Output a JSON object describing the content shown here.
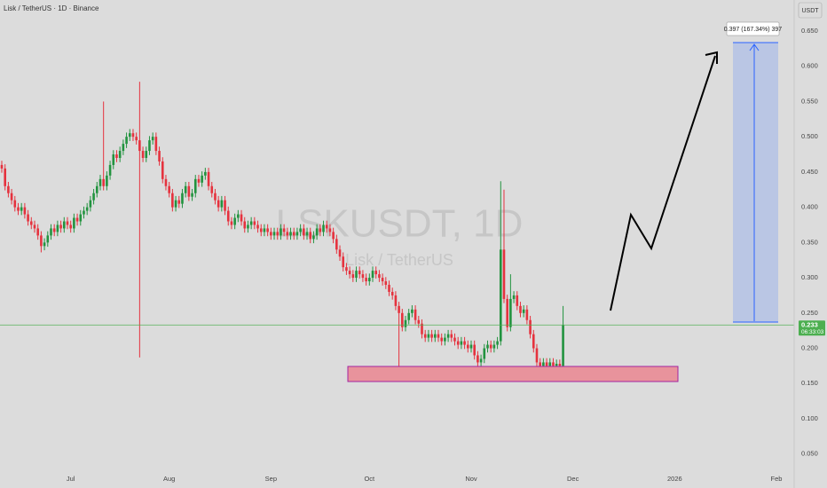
{
  "chart_data": {
    "type": "candlestick",
    "title": "Lisk / TetherUS · 1D · Binance",
    "watermark": "LSKUSDT, 1D",
    "watermark_subtitle": "Lisk / TetherUS",
    "currency": "USDT",
    "countdown": "06:33:03",
    "annotation": "0.397 (167.34%) 397",
    "up_color": "#22933f",
    "down_color": "#e5323e",
    "price_line_color": "#4caf50",
    "grid": false,
    "ylim": [
      0.027,
      0.694
    ],
    "yticks": [
      {
        "value": 0.05,
        "label": "0.050"
      },
      {
        "value": 0.1,
        "label": "0.100"
      },
      {
        "value": 0.15,
        "label": "0.150"
      },
      {
        "value": 0.2,
        "label": "0.200"
      },
      {
        "value": 0.25,
        "label": "0.250"
      },
      {
        "value": 0.3,
        "label": "0.300"
      },
      {
        "value": 0.35,
        "label": "0.350"
      },
      {
        "value": 0.4,
        "label": "0.400"
      },
      {
        "value": 0.45,
        "label": "0.450"
      },
      {
        "value": 0.5,
        "label": "0.500"
      },
      {
        "value": 0.55,
        "label": "0.550"
      },
      {
        "value": 0.6,
        "label": "0.600"
      },
      {
        "value": 0.65,
        "label": "0.650"
      }
    ],
    "xlim": [
      -0.54,
      241.4
    ],
    "xticks": [
      {
        "value": 21,
        "label": "Jul"
      },
      {
        "value": 51,
        "label": "Aug"
      },
      {
        "value": 82,
        "label": "Sep"
      },
      {
        "value": 112,
        "label": "Oct"
      },
      {
        "value": 143,
        "label": "Nov"
      },
      {
        "value": 174,
        "label": "Dec"
      },
      {
        "value": 205,
        "label": "2026"
      },
      {
        "value": 236,
        "label": "Feb"
      }
    ],
    "ohlc": [
      [
        0.46,
        0.466,
        0.449,
        0.455
      ],
      [
        0.455,
        0.461,
        0.424,
        0.43
      ],
      [
        0.43,
        0.436,
        0.414,
        0.42
      ],
      [
        0.42,
        0.426,
        0.404,
        0.41
      ],
      [
        0.41,
        0.416,
        0.394,
        0.4
      ],
      [
        0.4,
        0.406,
        0.389,
        0.395
      ],
      [
        0.395,
        0.406,
        0.389,
        0.4
      ],
      [
        0.4,
        0.406,
        0.384,
        0.39
      ],
      [
        0.39,
        0.396,
        0.374,
        0.38
      ],
      [
        0.38,
        0.386,
        0.369,
        0.375
      ],
      [
        0.375,
        0.381,
        0.364,
        0.37
      ],
      [
        0.37,
        0.376,
        0.354,
        0.36
      ],
      [
        0.36,
        0.366,
        0.336,
        0.345
      ],
      [
        0.345,
        0.356,
        0.339,
        0.35
      ],
      [
        0.35,
        0.366,
        0.344,
        0.36
      ],
      [
        0.36,
        0.376,
        0.354,
        0.37
      ],
      [
        0.37,
        0.376,
        0.359,
        0.365
      ],
      [
        0.365,
        0.381,
        0.359,
        0.375
      ],
      [
        0.375,
        0.381,
        0.364,
        0.37
      ],
      [
        0.37,
        0.386,
        0.364,
        0.38
      ],
      [
        0.38,
        0.386,
        0.369,
        0.375
      ],
      [
        0.375,
        0.381,
        0.364,
        0.37
      ],
      [
        0.37,
        0.391,
        0.364,
        0.385
      ],
      [
        0.385,
        0.391,
        0.374,
        0.38
      ],
      [
        0.38,
        0.396,
        0.374,
        0.39
      ],
      [
        0.39,
        0.401,
        0.384,
        0.395
      ],
      [
        0.395,
        0.406,
        0.389,
        0.4
      ],
      [
        0.4,
        0.416,
        0.394,
        0.41
      ],
      [
        0.41,
        0.426,
        0.404,
        0.42
      ],
      [
        0.42,
        0.436,
        0.414,
        0.43
      ],
      [
        0.43,
        0.446,
        0.424,
        0.44
      ],
      [
        0.44,
        0.55,
        0.424,
        0.43
      ],
      [
        0.43,
        0.451,
        0.424,
        0.445
      ],
      [
        0.445,
        0.466,
        0.439,
        0.46
      ],
      [
        0.46,
        0.481,
        0.454,
        0.475
      ],
      [
        0.475,
        0.481,
        0.464,
        0.47
      ],
      [
        0.47,
        0.486,
        0.464,
        0.48
      ],
      [
        0.48,
        0.496,
        0.474,
        0.49
      ],
      [
        0.49,
        0.506,
        0.484,
        0.5
      ],
      [
        0.5,
        0.511,
        0.494,
        0.505
      ],
      [
        0.505,
        0.511,
        0.494,
        0.5
      ],
      [
        0.5,
        0.506,
        0.489,
        0.495
      ],
      [
        0.495,
        0.578,
        0.187,
        0.48
      ],
      [
        0.48,
        0.486,
        0.464,
        0.47
      ],
      [
        0.47,
        0.486,
        0.464,
        0.48
      ],
      [
        0.48,
        0.501,
        0.474,
        0.495
      ],
      [
        0.495,
        0.506,
        0.489,
        0.5
      ],
      [
        0.5,
        0.506,
        0.474,
        0.48
      ],
      [
        0.48,
        0.486,
        0.459,
        0.465
      ],
      [
        0.465,
        0.471,
        0.434,
        0.44
      ],
      [
        0.44,
        0.446,
        0.424,
        0.43
      ],
      [
        0.43,
        0.436,
        0.414,
        0.42
      ],
      [
        0.42,
        0.426,
        0.394,
        0.4
      ],
      [
        0.4,
        0.416,
        0.394,
        0.41
      ],
      [
        0.41,
        0.416,
        0.399,
        0.405
      ],
      [
        0.405,
        0.426,
        0.399,
        0.42
      ],
      [
        0.42,
        0.436,
        0.414,
        0.43
      ],
      [
        0.43,
        0.436,
        0.409,
        0.415
      ],
      [
        0.415,
        0.426,
        0.409,
        0.42
      ],
      [
        0.42,
        0.446,
        0.414,
        0.44
      ],
      [
        0.44,
        0.446,
        0.429,
        0.435
      ],
      [
        0.435,
        0.451,
        0.429,
        0.445
      ],
      [
        0.445,
        0.456,
        0.439,
        0.45
      ],
      [
        0.45,
        0.456,
        0.424,
        0.43
      ],
      [
        0.43,
        0.436,
        0.414,
        0.42
      ],
      [
        0.42,
        0.426,
        0.404,
        0.41
      ],
      [
        0.41,
        0.416,
        0.394,
        0.4
      ],
      [
        0.4,
        0.416,
        0.394,
        0.41
      ],
      [
        0.41,
        0.416,
        0.389,
        0.395
      ],
      [
        0.395,
        0.401,
        0.374,
        0.38
      ],
      [
        0.38,
        0.386,
        0.369,
        0.375
      ],
      [
        0.375,
        0.391,
        0.369,
        0.385
      ],
      [
        0.385,
        0.396,
        0.379,
        0.39
      ],
      [
        0.39,
        0.396,
        0.374,
        0.38
      ],
      [
        0.38,
        0.386,
        0.364,
        0.37
      ],
      [
        0.37,
        0.381,
        0.364,
        0.375
      ],
      [
        0.375,
        0.386,
        0.369,
        0.38
      ],
      [
        0.38,
        0.386,
        0.369,
        0.375
      ],
      [
        0.375,
        0.381,
        0.364,
        0.37
      ],
      [
        0.37,
        0.376,
        0.359,
        0.365
      ],
      [
        0.365,
        0.376,
        0.359,
        0.37
      ],
      [
        0.37,
        0.376,
        0.359,
        0.365
      ],
      [
        0.365,
        0.371,
        0.354,
        0.36
      ],
      [
        0.36,
        0.371,
        0.354,
        0.365
      ],
      [
        0.365,
        0.371,
        0.354,
        0.36
      ],
      [
        0.36,
        0.376,
        0.354,
        0.37
      ],
      [
        0.37,
        0.376,
        0.359,
        0.365
      ],
      [
        0.365,
        0.371,
        0.354,
        0.36
      ],
      [
        0.36,
        0.371,
        0.354,
        0.365
      ],
      [
        0.365,
        0.371,
        0.354,
        0.36
      ],
      [
        0.36,
        0.371,
        0.354,
        0.365
      ],
      [
        0.365,
        0.376,
        0.359,
        0.37
      ],
      [
        0.37,
        0.376,
        0.354,
        0.36
      ],
      [
        0.36,
        0.371,
        0.354,
        0.365
      ],
      [
        0.365,
        0.371,
        0.349,
        0.355
      ],
      [
        0.355,
        0.366,
        0.349,
        0.36
      ],
      [
        0.36,
        0.376,
        0.354,
        0.37
      ],
      [
        0.37,
        0.376,
        0.359,
        0.365
      ],
      [
        0.365,
        0.381,
        0.359,
        0.375
      ],
      [
        0.375,
        0.381,
        0.364,
        0.37
      ],
      [
        0.37,
        0.376,
        0.359,
        0.365
      ],
      [
        0.365,
        0.371,
        0.349,
        0.355
      ],
      [
        0.355,
        0.361,
        0.334,
        0.34
      ],
      [
        0.34,
        0.346,
        0.324,
        0.33
      ],
      [
        0.33,
        0.336,
        0.309,
        0.315
      ],
      [
        0.315,
        0.321,
        0.304,
        0.31
      ],
      [
        0.31,
        0.316,
        0.299,
        0.305
      ],
      [
        0.305,
        0.311,
        0.294,
        0.3
      ],
      [
        0.3,
        0.316,
        0.294,
        0.31
      ],
      [
        0.31,
        0.316,
        0.299,
        0.305
      ],
      [
        0.305,
        0.311,
        0.294,
        0.3
      ],
      [
        0.3,
        0.306,
        0.289,
        0.295
      ],
      [
        0.295,
        0.306,
        0.289,
        0.3
      ],
      [
        0.3,
        0.316,
        0.294,
        0.31
      ],
      [
        0.31,
        0.316,
        0.299,
        0.305
      ],
      [
        0.305,
        0.311,
        0.294,
        0.3
      ],
      [
        0.3,
        0.306,
        0.289,
        0.295
      ],
      [
        0.295,
        0.301,
        0.284,
        0.29
      ],
      [
        0.29,
        0.296,
        0.274,
        0.28
      ],
      [
        0.28,
        0.286,
        0.269,
        0.275
      ],
      [
        0.275,
        0.281,
        0.254,
        0.26
      ],
      [
        0.26,
        0.266,
        0.17,
        0.25
      ],
      [
        0.25,
        0.256,
        0.224,
        0.23
      ],
      [
        0.23,
        0.246,
        0.224,
        0.24
      ],
      [
        0.24,
        0.256,
        0.234,
        0.25
      ],
      [
        0.25,
        0.261,
        0.244,
        0.255
      ],
      [
        0.255,
        0.261,
        0.234,
        0.24
      ],
      [
        0.24,
        0.246,
        0.229,
        0.235
      ],
      [
        0.235,
        0.241,
        0.214,
        0.22
      ],
      [
        0.22,
        0.226,
        0.209,
        0.215
      ],
      [
        0.215,
        0.226,
        0.209,
        0.22
      ],
      [
        0.22,
        0.226,
        0.209,
        0.215
      ],
      [
        0.215,
        0.226,
        0.209,
        0.22
      ],
      [
        0.22,
        0.226,
        0.209,
        0.215
      ],
      [
        0.215,
        0.221,
        0.204,
        0.21
      ],
      [
        0.21,
        0.221,
        0.204,
        0.215
      ],
      [
        0.215,
        0.226,
        0.209,
        0.22
      ],
      [
        0.22,
        0.226,
        0.209,
        0.215
      ],
      [
        0.215,
        0.221,
        0.204,
        0.21
      ],
      [
        0.21,
        0.216,
        0.199,
        0.205
      ],
      [
        0.205,
        0.216,
        0.199,
        0.21
      ],
      [
        0.21,
        0.216,
        0.199,
        0.205
      ],
      [
        0.205,
        0.211,
        0.194,
        0.2
      ],
      [
        0.2,
        0.211,
        0.194,
        0.205
      ],
      [
        0.205,
        0.211,
        0.184,
        0.19
      ],
      [
        0.19,
        0.196,
        0.168,
        0.18
      ],
      [
        0.18,
        0.191,
        0.174,
        0.185
      ],
      [
        0.185,
        0.206,
        0.179,
        0.2
      ],
      [
        0.2,
        0.211,
        0.194,
        0.205
      ],
      [
        0.205,
        0.211,
        0.194,
        0.2
      ],
      [
        0.2,
        0.211,
        0.194,
        0.205
      ],
      [
        0.205,
        0.216,
        0.199,
        0.21
      ],
      [
        0.21,
        0.437,
        0.204,
        0.34
      ],
      [
        0.34,
        0.425,
        0.264,
        0.27
      ],
      [
        0.27,
        0.276,
        0.224,
        0.23
      ],
      [
        0.23,
        0.305,
        0.224,
        0.27
      ],
      [
        0.27,
        0.281,
        0.264,
        0.275
      ],
      [
        0.275,
        0.281,
        0.254,
        0.26
      ],
      [
        0.26,
        0.266,
        0.244,
        0.25
      ],
      [
        0.25,
        0.261,
        0.244,
        0.255
      ],
      [
        0.255,
        0.261,
        0.234,
        0.24
      ],
      [
        0.24,
        0.246,
        0.214,
        0.22
      ],
      [
        0.22,
        0.226,
        0.194,
        0.2
      ],
      [
        0.2,
        0.206,
        0.174,
        0.18
      ],
      [
        0.18,
        0.186,
        0.169,
        0.175
      ],
      [
        0.175,
        0.186,
        0.169,
        0.18
      ],
      [
        0.18,
        0.186,
        0.169,
        0.175
      ],
      [
        0.175,
        0.186,
        0.169,
        0.18
      ],
      [
        0.18,
        0.186,
        0.169,
        0.175
      ],
      [
        0.175,
        0.184,
        0.169,
        0.178
      ],
      [
        0.178,
        0.184,
        0.169,
        0.175
      ],
      [
        0.175,
        0.26,
        0.171,
        0.233
      ]
    ]
  }
}
